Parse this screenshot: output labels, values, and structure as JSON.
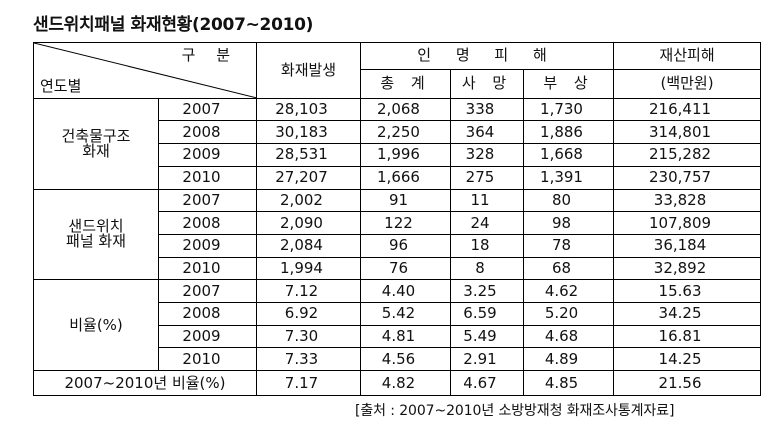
{
  "title": "샌드위치패널 화재현황(2007~2010)",
  "header": {
    "gubun": "구 분",
    "yeondo": "연도별",
    "fire_count": "화재발생",
    "casualties": "인 명 피 해",
    "total": "총 계",
    "deaths": "사 망",
    "injured": "부 상",
    "property": "재산피해",
    "property_unit": "(백만원)"
  },
  "groups": [
    {
      "label_line1": "건축물구조",
      "label_line2": "화재",
      "rows": [
        {
          "year": "2007",
          "fires": "28,103",
          "total": "2,068",
          "deaths": "338",
          "injured": "1,730",
          "property": "216,411"
        },
        {
          "year": "2008",
          "fires": "30,183",
          "total": "2,250",
          "deaths": "364",
          "injured": "1,886",
          "property": "314,801"
        },
        {
          "year": "2009",
          "fires": "28,531",
          "total": "1,996",
          "deaths": "328",
          "injured": "1,668",
          "property": "215,282"
        },
        {
          "year": "2010",
          "fires": "27,207",
          "total": "1,666",
          "deaths": "275",
          "injured": "1,391",
          "property": "230,757"
        }
      ]
    },
    {
      "label_line1": "샌드위치",
      "label_line2": "패널 화재",
      "rows": [
        {
          "year": "2007",
          "fires": "2,002",
          "total": "91",
          "deaths": "11",
          "injured": "80",
          "property": "33,828"
        },
        {
          "year": "2008",
          "fires": "2,090",
          "total": "122",
          "deaths": "24",
          "injured": "98",
          "property": "107,809"
        },
        {
          "year": "2009",
          "fires": "2,084",
          "total": "96",
          "deaths": "18",
          "injured": "78",
          "property": "36,184"
        },
        {
          "year": "2010",
          "fires": "1,994",
          "total": "76",
          "deaths": "8",
          "injured": "68",
          "property": "32,892"
        }
      ]
    },
    {
      "label_line1": "비율(%)",
      "label_line2": "",
      "rows": [
        {
          "year": "2007",
          "fires": "7.12",
          "total": "4.40",
          "deaths": "3.25",
          "injured": "4.62",
          "property": "15.63"
        },
        {
          "year": "2008",
          "fires": "6.92",
          "total": "5.42",
          "deaths": "6.59",
          "injured": "5.20",
          "property": "34.25"
        },
        {
          "year": "2009",
          "fires": "7.30",
          "total": "4.81",
          "deaths": "5.49",
          "injured": "4.68",
          "property": "16.81"
        },
        {
          "year": "2010",
          "fires": "7.33",
          "total": "4.56",
          "deaths": "2.91",
          "injured": "4.89",
          "property": "14.25"
        }
      ]
    }
  ],
  "summary": {
    "label": "2007~2010년 비율(%)",
    "fires": "7.17",
    "total": "4.82",
    "deaths": "4.67",
    "injured": "4.85",
    "property": "21.56"
  },
  "source": "[출처 : 2007~2010년 소방방재청 화재조사통계자료]"
}
